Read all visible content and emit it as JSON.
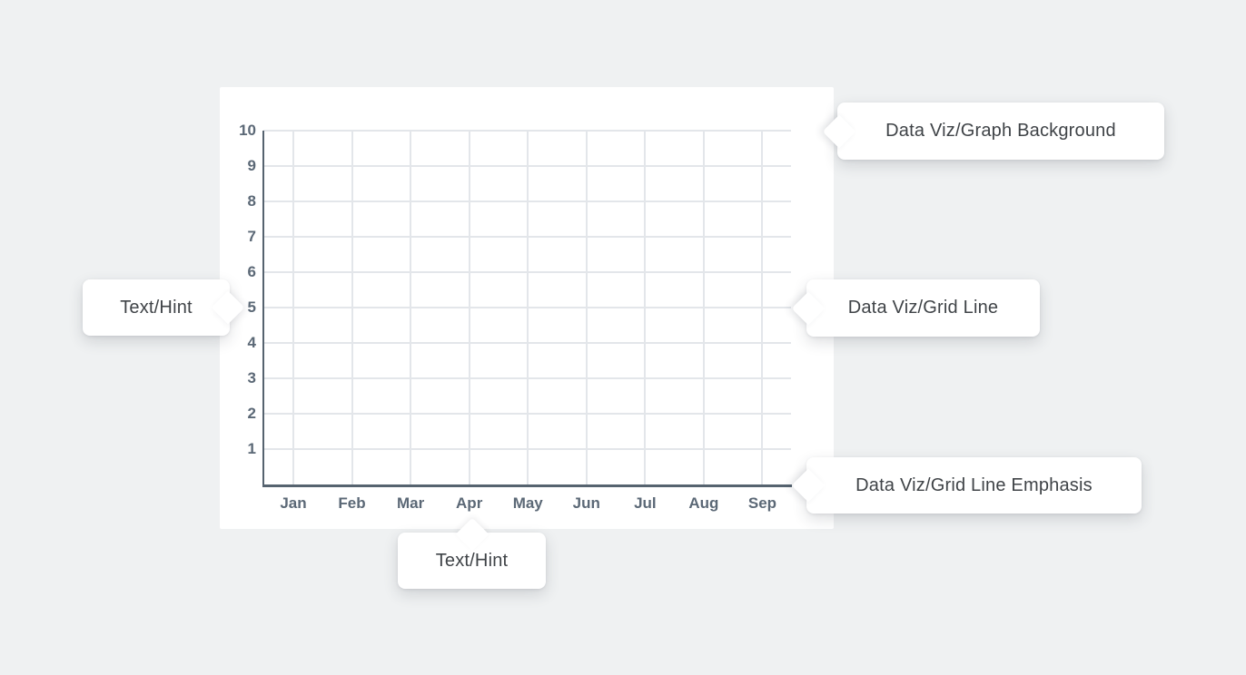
{
  "chart_data": {
    "type": "line",
    "title": "",
    "xlabel": "",
    "ylabel": "",
    "categories": [
      "Jan",
      "Feb",
      "Mar",
      "Apr",
      "May",
      "Jun",
      "Jul",
      "Aug",
      "Sep"
    ],
    "y_ticks": [
      "10",
      "9",
      "8",
      "7",
      "6",
      "5",
      "4",
      "3",
      "2",
      "1"
    ],
    "ylim": [
      0,
      10
    ],
    "series": [],
    "grid": "on",
    "legend": "none"
  },
  "colors": {
    "page_background": "#eff1f2",
    "graph_background": "#ffffff",
    "grid_line": "#e3e6ea",
    "grid_line_emphasis": "#56636f",
    "hint_text": "#5b6876",
    "callout_background": "#ffffff",
    "callout_text": "#3f4347"
  },
  "callouts": {
    "graph_background": {
      "label": "Data Viz/Graph Background"
    },
    "grid_line": {
      "label": "Data Viz/Grid Line"
    },
    "grid_line_emphasis": {
      "label": "Data Viz/Grid Line Emphasis"
    },
    "text_hint_y": {
      "label": "Text/Hint"
    },
    "text_hint_x": {
      "label": "Text/Hint"
    }
  }
}
